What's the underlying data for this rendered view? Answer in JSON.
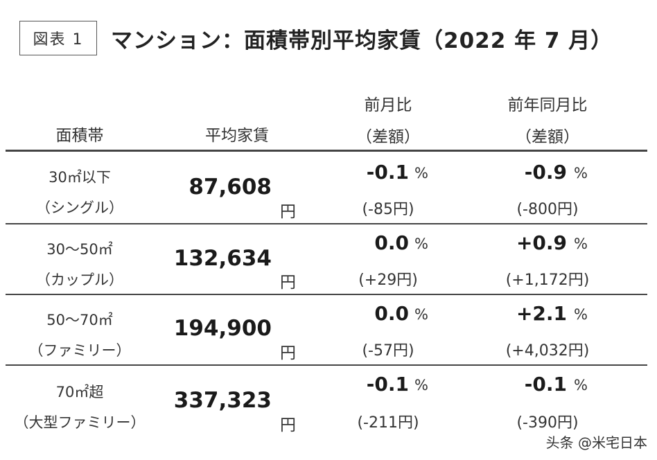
{
  "figure_label": "図表 1",
  "title": "マンション：面積帯別平均家賃（2022 年 7 月）",
  "headers": {
    "area": "面積帯",
    "rent": "平均家賃",
    "mom_line1": "前月比",
    "mom_line2": "（差額）",
    "yoy_line1": "前年同月比",
    "yoy_line2": "（差額）"
  },
  "units": {
    "yen": "円",
    "percent": "%"
  },
  "rows": [
    {
      "area": "30㎡以下",
      "type": "（シングル）",
      "rent": "87,608",
      "mom_pct": "-0.1",
      "mom_diff": "(-85円)",
      "yoy_pct": "-0.9",
      "yoy_diff": "(-800円)"
    },
    {
      "area": "30〜50㎡",
      "type": "（カップル）",
      "rent": "132,634",
      "mom_pct": "0.0",
      "mom_diff": "(+29円)",
      "yoy_pct": "+0.9",
      "yoy_diff": "(+1,172円)"
    },
    {
      "area": "50〜70㎡",
      "type": "（ファミリー）",
      "rent": "194,900",
      "mom_pct": "0.0",
      "mom_diff": "(-57円)",
      "yoy_pct": "+2.1",
      "yoy_diff": "(+4,032円)"
    },
    {
      "area": "70㎡超",
      "type": "（大型ファミリー）",
      "rent": "337,323",
      "mom_pct": "-0.1",
      "mom_diff": "(-211円)",
      "yoy_pct": "-0.1",
      "yoy_diff": "(-390円)"
    }
  ],
  "watermark": "头条 @米宅日本"
}
